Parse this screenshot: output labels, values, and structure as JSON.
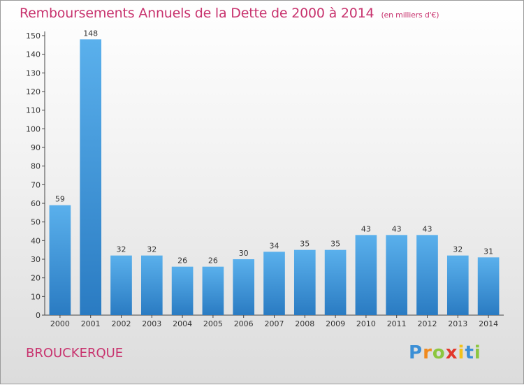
{
  "title": "Remboursements Annuels de la Dette de 2000 à 2014",
  "unit_note": "(en milliers d'€)",
  "commune": "BROUCKERQUE",
  "logo": {
    "letters": [
      {
        "char": "P",
        "color": "#3b8fd6"
      },
      {
        "char": "r",
        "color": "#f08a1e"
      },
      {
        "char": "o",
        "color": "#8cc63f"
      },
      {
        "char": "x",
        "color": "#e2372b"
      },
      {
        "char": "i",
        "color": "#f2c21b"
      },
      {
        "char": "t",
        "color": "#3b8fd6"
      },
      {
        "char": "i",
        "color": "#8cc63f"
      }
    ]
  },
  "colors": {
    "accent": "#c8336e",
    "bar_top": "#5ab0ec",
    "bar_bottom": "#2a7bc2"
  },
  "chart_data": {
    "type": "bar",
    "categories": [
      "2000",
      "2001",
      "2002",
      "2003",
      "2004",
      "2005",
      "2006",
      "2007",
      "2008",
      "2009",
      "2010",
      "2011",
      "2012",
      "2013",
      "2014"
    ],
    "values": [
      59,
      148,
      32,
      32,
      26,
      26,
      30,
      34,
      35,
      35,
      43,
      43,
      43,
      32,
      31
    ],
    "ylim": [
      0,
      150
    ],
    "yticks": [
      0,
      10,
      20,
      30,
      40,
      50,
      60,
      70,
      80,
      90,
      100,
      110,
      120,
      130,
      140,
      150
    ],
    "grid": false
  }
}
